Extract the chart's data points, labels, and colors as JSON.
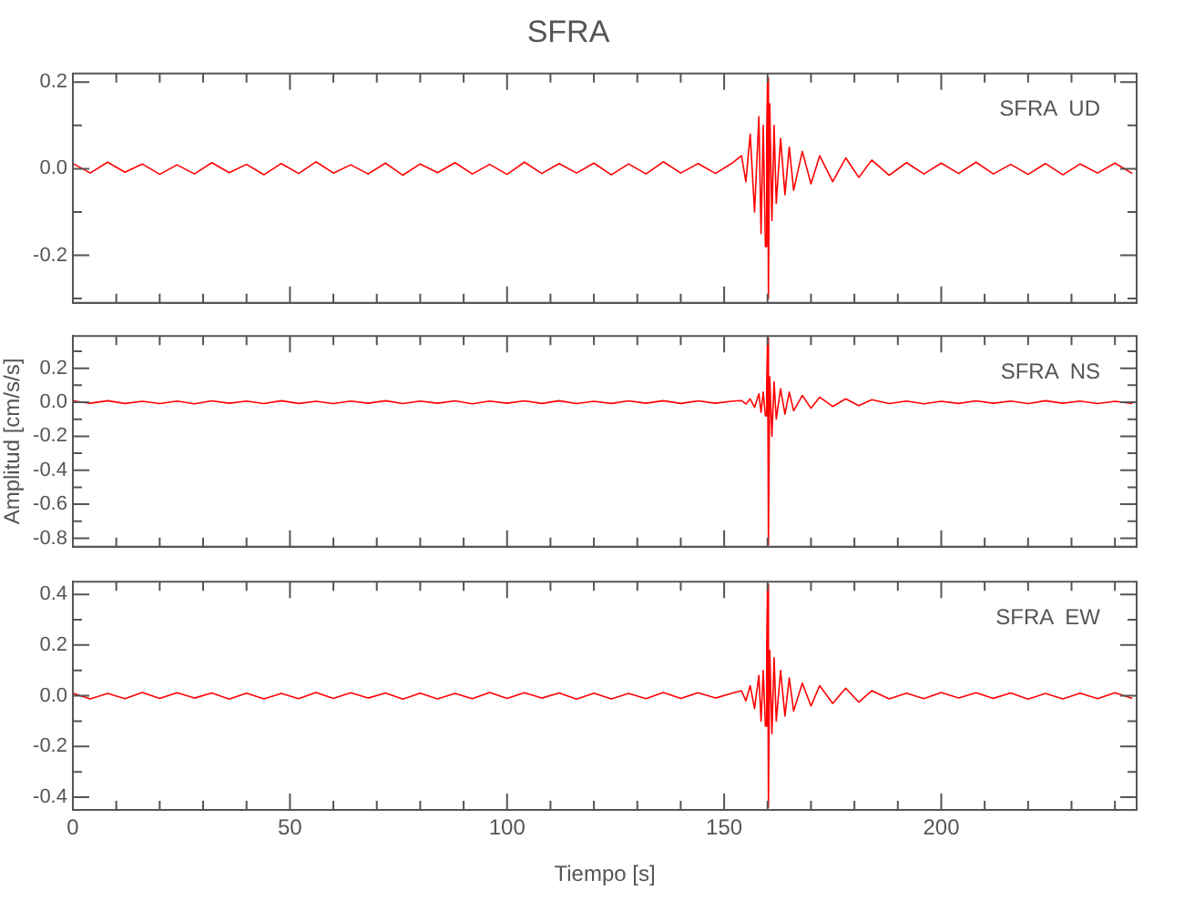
{
  "chart_data": [
    {
      "type": "line",
      "title": "SFRA",
      "annotations": [
        "SFRA  UD"
      ],
      "xlim": [
        0,
        245
      ],
      "ylim": [
        -0.31,
        0.22
      ],
      "tick_labels": "y",
      "grid": false,
      "legend": false,
      "marker": "none",
      "line_style": "solid",
      "xticks": [
        0,
        {
          "value": 10,
          "label": null
        },
        {
          "value": 20,
          "label": null
        },
        {
          "value": 30,
          "label": null
        },
        {
          "value": 40,
          "label": null
        },
        50,
        {
          "value": 60,
          "label": null
        },
        {
          "value": 70,
          "label": null
        },
        {
          "value": 80,
          "label": null
        },
        {
          "value": 90,
          "label": null
        },
        100,
        {
          "value": 110,
          "label": null
        },
        {
          "value": 120,
          "label": null
        },
        {
          "value": 130,
          "label": null
        },
        {
          "value": 140,
          "label": null
        },
        150,
        {
          "value": 160,
          "label": null
        },
        {
          "value": 170,
          "label": null
        },
        {
          "value": 180,
          "label": null
        },
        {
          "value": 190,
          "label": null
        },
        200,
        {
          "value": 210,
          "label": null
        },
        {
          "value": 220,
          "label": null
        },
        {
          "value": 230,
          "label": null
        },
        {
          "value": 240,
          "label": null
        }
      ],
      "yticks": [
        {
          "value": -0.3,
          "label": null
        },
        -0.2,
        {
          "value": -0.1,
          "label": null
        },
        {
          "value": 0,
          "label": "0.0"
        },
        {
          "value": 0.1,
          "label": null
        },
        0.2
      ],
      "x": [
        0,
        4,
        8,
        12,
        16,
        20,
        24,
        28,
        32,
        36,
        40,
        44,
        48,
        52,
        56,
        60,
        64,
        68,
        72,
        76,
        80,
        84,
        88,
        92,
        96,
        100,
        104,
        108,
        112,
        116,
        120,
        124,
        128,
        132,
        136,
        140,
        144,
        148,
        152,
        154,
        155,
        156,
        157,
        158,
        158.5,
        159,
        159.5,
        159.8,
        160,
        160.2,
        160.5,
        161,
        161.5,
        162,
        163,
        164,
        165,
        166,
        168,
        170,
        172,
        175,
        178,
        181,
        184,
        188,
        192,
        196,
        200,
        204,
        208,
        212,
        216,
        220,
        224,
        228,
        232,
        236,
        240,
        244
      ],
      "series": [
        {
          "color": "#ff0000",
          "values": [
            0.012,
            -0.01,
            0.015,
            -0.008,
            0.011,
            -0.013,
            0.009,
            -0.012,
            0.014,
            -0.009,
            0.01,
            -0.014,
            0.012,
            -0.011,
            0.016,
            -0.01,
            0.009,
            -0.012,
            0.013,
            -0.015,
            0.011,
            -0.009,
            0.014,
            -0.012,
            0.01,
            -0.013,
            0.015,
            -0.011,
            0.012,
            -0.01,
            0.013,
            -0.014,
            0.011,
            -0.012,
            0.016,
            -0.01,
            0.012,
            -0.011,
            0.014,
            0.03,
            -0.03,
            0.08,
            -0.1,
            0.12,
            -0.15,
            0.1,
            -0.18,
            0.08,
            0.21,
            -0.3,
            0.15,
            -0.12,
            0.1,
            -0.08,
            0.07,
            -0.06,
            0.05,
            -0.05,
            0.04,
            -0.035,
            0.03,
            -0.03,
            0.025,
            -0.02,
            0.02,
            -0.015,
            0.014,
            -0.012,
            0.013,
            -0.011,
            0.015,
            -0.012,
            0.01,
            -0.013,
            0.012,
            -0.014,
            0.011,
            -0.01,
            0.013,
            -0.011
          ]
        }
      ]
    },
    {
      "type": "line",
      "ylabel": "Amplitud [cm/s/s]",
      "annotations": [
        "SFRA  NS"
      ],
      "xlim": [
        0,
        245
      ],
      "ylim": [
        -0.85,
        0.39
      ],
      "tick_labels": "y",
      "grid": false,
      "legend": false,
      "marker": "none",
      "line_style": "solid",
      "xticks": [
        0,
        {
          "value": 10,
          "label": null
        },
        {
          "value": 20,
          "label": null
        },
        {
          "value": 30,
          "label": null
        },
        {
          "value": 40,
          "label": null
        },
        50,
        {
          "value": 60,
          "label": null
        },
        {
          "value": 70,
          "label": null
        },
        {
          "value": 80,
          "label": null
        },
        {
          "value": 90,
          "label": null
        },
        100,
        {
          "value": 110,
          "label": null
        },
        {
          "value": 120,
          "label": null
        },
        {
          "value": 130,
          "label": null
        },
        {
          "value": 140,
          "label": null
        },
        150,
        {
          "value": 160,
          "label": null
        },
        {
          "value": 170,
          "label": null
        },
        {
          "value": 180,
          "label": null
        },
        {
          "value": 190,
          "label": null
        },
        200,
        {
          "value": 210,
          "label": null
        },
        {
          "value": 220,
          "label": null
        },
        {
          "value": 230,
          "label": null
        },
        {
          "value": 240,
          "label": null
        }
      ],
      "yticks": [
        -0.8,
        {
          "value": -0.7,
          "label": null
        },
        -0.6,
        {
          "value": -0.5,
          "label": null
        },
        -0.4,
        {
          "value": -0.3,
          "label": null
        },
        -0.2,
        {
          "value": -0.1,
          "label": null
        },
        {
          "value": 0,
          "label": "0.0"
        },
        {
          "value": 0.1,
          "label": null
        },
        0.2,
        {
          "value": 0.3,
          "label": null
        }
      ],
      "x": [
        0,
        4,
        8,
        12,
        16,
        20,
        24,
        28,
        32,
        36,
        40,
        44,
        48,
        52,
        56,
        60,
        64,
        68,
        72,
        76,
        80,
        84,
        88,
        92,
        96,
        100,
        104,
        108,
        112,
        116,
        120,
        124,
        128,
        132,
        136,
        140,
        144,
        148,
        152,
        154,
        155,
        156,
        157,
        158,
        158.5,
        159,
        159.5,
        159.8,
        160,
        160.2,
        160.5,
        161,
        161.5,
        162,
        163,
        164,
        165,
        166,
        168,
        170,
        172,
        175,
        178,
        181,
        184,
        188,
        192,
        196,
        200,
        204,
        208,
        212,
        216,
        220,
        224,
        228,
        232,
        236,
        240,
        244
      ],
      "series": [
        {
          "color": "#ff0000",
          "values": [
            0.008,
            -0.006,
            0.009,
            -0.007,
            0.006,
            -0.008,
            0.007,
            -0.009,
            0.008,
            -0.006,
            0.007,
            -0.008,
            0.009,
            -0.007,
            0.006,
            -0.008,
            0.007,
            -0.006,
            0.009,
            -0.008,
            0.007,
            -0.006,
            0.008,
            -0.009,
            0.007,
            -0.006,
            0.008,
            -0.007,
            0.009,
            -0.008,
            0.006,
            -0.007,
            0.008,
            -0.006,
            0.009,
            -0.007,
            0.008,
            -0.006,
            0.007,
            0.01,
            -0.01,
            0.02,
            -0.03,
            0.05,
            -0.06,
            0.06,
            -0.08,
            0.1,
            0.38,
            -0.84,
            0.15,
            -0.2,
            0.12,
            -0.1,
            0.08,
            -0.07,
            0.06,
            -0.05,
            0.04,
            -0.035,
            0.03,
            -0.025,
            0.02,
            -0.02,
            0.015,
            -0.008,
            0.007,
            -0.009,
            0.006,
            -0.007,
            0.008,
            -0.006,
            0.007,
            -0.008,
            0.009,
            -0.006,
            0.007,
            -0.008,
            0.006,
            -0.007
          ]
        }
      ]
    },
    {
      "type": "line",
      "xlabel": "Tiempo [s]",
      "annotations": [
        "SFRA  EW"
      ],
      "xlim": [
        0,
        245
      ],
      "ylim": [
        -0.45,
        0.45
      ],
      "grid": false,
      "legend": false,
      "marker": "none",
      "line_style": "solid",
      "xticks": [
        0,
        {
          "value": 10,
          "label": null
        },
        {
          "value": 20,
          "label": null
        },
        {
          "value": 30,
          "label": null
        },
        {
          "value": 40,
          "label": null
        },
        50,
        {
          "value": 60,
          "label": null
        },
        {
          "value": 70,
          "label": null
        },
        {
          "value": 80,
          "label": null
        },
        {
          "value": 90,
          "label": null
        },
        100,
        {
          "value": 110,
          "label": null
        },
        {
          "value": 120,
          "label": null
        },
        {
          "value": 130,
          "label": null
        },
        {
          "value": 140,
          "label": null
        },
        150,
        {
          "value": 160,
          "label": null
        },
        {
          "value": 170,
          "label": null
        },
        {
          "value": 180,
          "label": null
        },
        {
          "value": 190,
          "label": null
        },
        200,
        {
          "value": 210,
          "label": null
        },
        {
          "value": 220,
          "label": null
        },
        {
          "value": 230,
          "label": null
        },
        {
          "value": 240,
          "label": null
        }
      ],
      "yticks": [
        -0.4,
        {
          "value": -0.3,
          "label": null
        },
        -0.2,
        {
          "value": -0.1,
          "label": null
        },
        {
          "value": 0,
          "label": "0.0"
        },
        {
          "value": 0.1,
          "label": null
        },
        0.2,
        {
          "value": 0.3,
          "label": null
        },
        0.4
      ],
      "x": [
        0,
        4,
        8,
        12,
        16,
        20,
        24,
        28,
        32,
        36,
        40,
        44,
        48,
        52,
        56,
        60,
        64,
        68,
        72,
        76,
        80,
        84,
        88,
        92,
        96,
        100,
        104,
        108,
        112,
        116,
        120,
        124,
        128,
        132,
        136,
        140,
        144,
        148,
        152,
        154,
        155,
        156,
        157,
        158,
        158.5,
        159,
        159.5,
        159.8,
        160,
        160.2,
        160.5,
        161,
        161.5,
        162,
        163,
        164,
        165,
        166,
        168,
        170,
        172,
        175,
        178,
        181,
        184,
        188,
        192,
        196,
        200,
        204,
        208,
        212,
        216,
        220,
        224,
        228,
        232,
        236,
        240,
        244
      ],
      "series": [
        {
          "color": "#ff0000",
          "values": [
            0.01,
            -0.012,
            0.009,
            -0.011,
            0.013,
            -0.01,
            0.012,
            -0.009,
            0.011,
            -0.013,
            0.01,
            -0.012,
            0.009,
            -0.011,
            0.013,
            -0.01,
            0.012,
            -0.009,
            0.011,
            -0.013,
            0.01,
            -0.012,
            0.009,
            -0.011,
            0.013,
            -0.01,
            0.012,
            -0.009,
            0.011,
            -0.013,
            0.01,
            -0.012,
            0.009,
            -0.011,
            0.013,
            -0.01,
            0.012,
            -0.009,
            0.011,
            0.02,
            -0.02,
            0.04,
            -0.05,
            0.08,
            -0.1,
            0.1,
            -0.12,
            0.2,
            0.44,
            -0.44,
            0.18,
            -0.15,
            0.15,
            -0.1,
            0.1,
            -0.08,
            0.07,
            -0.06,
            0.05,
            -0.04,
            0.04,
            -0.03,
            0.03,
            -0.025,
            0.02,
            -0.012,
            0.01,
            -0.011,
            0.013,
            -0.009,
            0.012,
            -0.01,
            0.011,
            -0.013,
            0.009,
            -0.012,
            0.01,
            -0.011,
            0.012,
            -0.01
          ]
        }
      ]
    }
  ]
}
